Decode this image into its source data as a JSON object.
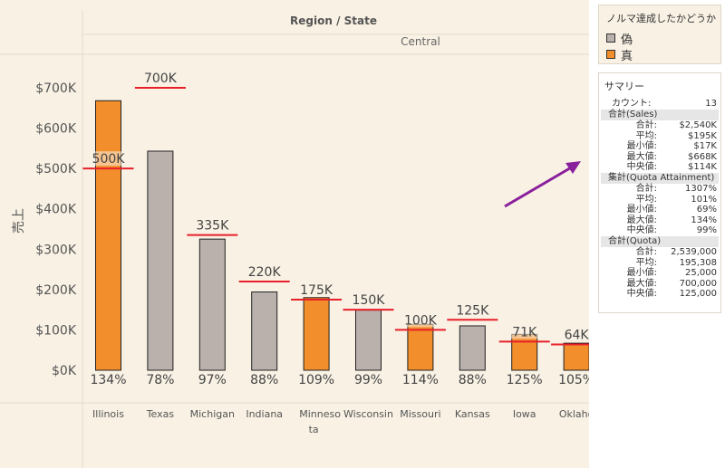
{
  "header": {
    "group_title": "Region / State",
    "region": "Central"
  },
  "legend": {
    "title": "ノルマ達成したかどうか",
    "items": [
      {
        "label": "偽",
        "color": "#bab0ac"
      },
      {
        "label": "真",
        "color": "#f28e2b"
      }
    ]
  },
  "summary": {
    "title": "サマリー",
    "count_label": "カウント:",
    "count_value": "13",
    "sections": [
      {
        "header": "合計(Sales)",
        "rows": [
          {
            "label": "合計:",
            "value": "$2,540K"
          },
          {
            "label": "平均:",
            "value": "$195K"
          },
          {
            "label": "最小値:",
            "value": "$17K"
          },
          {
            "label": "最大値:",
            "value": "$668K"
          },
          {
            "label": "中央値:",
            "value": "$114K"
          }
        ]
      },
      {
        "header": "集計(Quota Attainment)",
        "rows": [
          {
            "label": "合計:",
            "value": "1307%"
          },
          {
            "label": "平均:",
            "value": "101%"
          },
          {
            "label": "最小値:",
            "value": "69%"
          },
          {
            "label": "最大値:",
            "value": "134%"
          },
          {
            "label": "中央値:",
            "value": "99%"
          }
        ]
      },
      {
        "header": "合計(Quota)",
        "rows": [
          {
            "label": "合計:",
            "value": "2,539,000"
          },
          {
            "label": "平均:",
            "value": "195,308"
          },
          {
            "label": "最小値:",
            "value": "25,000"
          },
          {
            "label": "最大値:",
            "value": "700,000"
          },
          {
            "label": "中央値:",
            "value": "125,000"
          }
        ]
      }
    ]
  },
  "colors": {
    "true": "#f28e2b",
    "false": "#bab0ac",
    "quota_line": "#e8202a",
    "background": "#f8f1e4",
    "arrow": "#8a1f9c"
  },
  "chart_data": {
    "type": "bar",
    "title": "",
    "ylabel": "売上",
    "xlabel": "",
    "ylim": [
      0,
      750000
    ],
    "yticks": [
      0,
      100000,
      200000,
      300000,
      400000,
      500000,
      600000,
      700000
    ],
    "ytick_labels": [
      "$0K",
      "$100K",
      "$200K",
      "$300K",
      "$400K",
      "$500K",
      "$600K",
      "$700K"
    ],
    "categories": [
      "Illinois",
      "Texas",
      "Michigan",
      "Indiana",
      "Minnesota",
      "Wisconsin",
      "Missouri",
      "Kansas",
      "Iowa",
      "Oklahoma"
    ],
    "category_labels": [
      "Illinois",
      "Texas",
      "Michigan",
      "Indiana",
      "Minnesota",
      "Wisconsin",
      "Missouri",
      "Kansas",
      "Iowa",
      "Oklaho"
    ],
    "sales": [
      668000,
      543000,
      325000,
      194000,
      180000,
      149000,
      114000,
      110000,
      89000,
      67000
    ],
    "quota": [
      500000,
      700000,
      335000,
      220000,
      175000,
      150000,
      100000,
      125000,
      71000,
      64000
    ],
    "quota_labels": [
      "500K",
      "700K",
      "335K",
      "220K",
      "175K",
      "150K",
      "100K",
      "125K",
      "71K",
      "64K"
    ],
    "attainment_labels": [
      "134%",
      "78%",
      "97%",
      "88%",
      "109%",
      "99%",
      "114%",
      "88%",
      "125%",
      "105%"
    ],
    "met_quota": [
      true,
      false,
      false,
      false,
      true,
      false,
      true,
      false,
      true,
      true
    ]
  }
}
